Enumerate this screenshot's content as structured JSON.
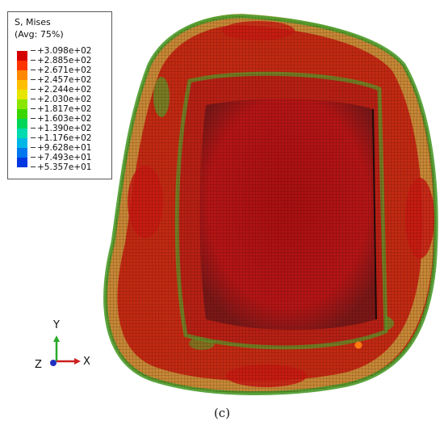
{
  "legend": {
    "title": "S, Mises",
    "avg": "(Avg: 75%)",
    "entries": [
      {
        "label": "+3.098e+02",
        "color": "#d40000"
      },
      {
        "label": "+2.885e+02",
        "color": "#ff3300"
      },
      {
        "label": "+2.671e+02",
        "color": "#ff8800"
      },
      {
        "label": "+2.457e+02",
        "color": "#ffbf00"
      },
      {
        "label": "+2.244e+02",
        "color": "#e6e600"
      },
      {
        "label": "+2.030e+02",
        "color": "#8ae600"
      },
      {
        "label": "+1.817e+02",
        "color": "#3ad600"
      },
      {
        "label": "+1.603e+02",
        "color": "#00d65a"
      },
      {
        "label": "+1.390e+02",
        "color": "#00dbb0"
      },
      {
        "label": "+1.176e+02",
        "color": "#00b6e6"
      },
      {
        "label": "+9.628e+01",
        "color": "#0077ee"
      },
      {
        "label": "+7.493e+01",
        "color": "#0037e0"
      },
      {
        "label": "+5.357e+01",
        "color": "#0000c8"
      }
    ]
  },
  "triad": {
    "y": "Y",
    "x": "X",
    "z": "Z"
  },
  "caption": "(c)",
  "colors": {
    "core": "#b51212",
    "ring": "#c32212",
    "edge_green": "#4a9a2a",
    "edge_yellow": "#c8a040"
  }
}
